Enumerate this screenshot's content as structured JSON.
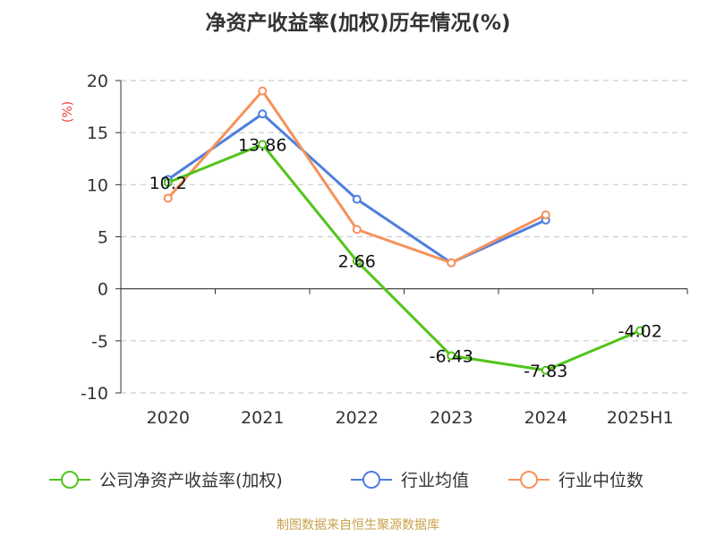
{
  "chart_data": {
    "type": "line",
    "title": "净资产收益率(加权)历年情况(%)",
    "ylabel": "(%)",
    "ylim": [
      -10,
      20
    ],
    "yticks": [
      -10,
      -5,
      0,
      5,
      10,
      15,
      20
    ],
    "categories": [
      "2020",
      "2021",
      "2022",
      "2023",
      "2024",
      "2025H1"
    ],
    "grid": true,
    "legend_position": "bottom",
    "series": [
      {
        "name": "公司净资产收益率(加权)",
        "color": "#52c41a",
        "values": [
          10.2,
          13.86,
          2.66,
          -6.43,
          -7.83,
          -4.02
        ],
        "labels": [
          "10.2",
          "13.86",
          "2.66",
          "-6.43",
          "-7.83",
          "-4.02"
        ]
      },
      {
        "name": "行业均值",
        "color": "#4f7fdd",
        "values": [
          10.5,
          16.8,
          8.6,
          2.5,
          6.6,
          null
        ]
      },
      {
        "name": "行业中位数",
        "color": "#f5925c",
        "values": [
          8.7,
          19.0,
          5.7,
          2.5,
          7.1,
          null
        ]
      }
    ],
    "source": "制图数据来自恒生聚源数据库"
  }
}
